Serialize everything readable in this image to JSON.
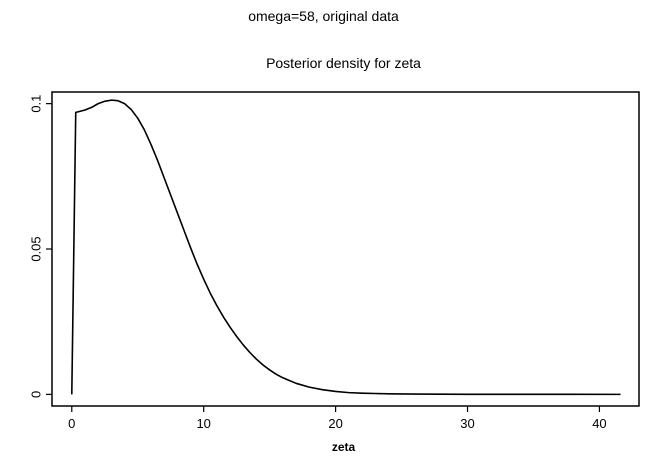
{
  "figure": {
    "suptitle": "omega=58, original data"
  },
  "chart_data": {
    "type": "line",
    "title": "Posterior density for zeta",
    "xlabel": "zeta",
    "ylabel": "",
    "xlim": [
      -1.5,
      43
    ],
    "ylim": [
      -0.004,
      0.104
    ],
    "x_ticks": [
      0,
      10,
      20,
      30,
      40
    ],
    "x_tick_labels": [
      "0",
      "10",
      "20",
      "30",
      "40"
    ],
    "y_ticks": [
      0,
      0.05,
      0.1
    ],
    "y_tick_labels": [
      "0",
      "0.05",
      "0.1"
    ],
    "grid": false,
    "legend": "none",
    "series": [
      {
        "x": [
          0,
          0.3,
          0.5,
          1.0,
          1.5,
          2.0,
          2.5,
          3.0,
          3.5,
          4.0,
          4.5,
          5.0,
          5.5,
          6.0,
          6.5,
          7.0,
          7.5,
          8.0,
          8.5,
          9.0,
          9.5,
          10.0,
          10.5,
          11.0,
          11.5,
          12.0,
          12.5,
          13.0,
          13.5,
          14.0,
          14.5,
          15.0,
          15.5,
          16.0,
          17.0,
          18.0,
          19.0,
          20.0,
          21.0,
          22.0,
          23.0,
          24.0,
          25.0,
          26.0,
          28.0,
          30.0,
          32.0,
          35.0,
          38.0,
          41.6
        ],
        "y": [
          0.0,
          0.097,
          0.0972,
          0.0978,
          0.0987,
          0.1,
          0.1008,
          0.1012,
          0.101,
          0.1,
          0.098,
          0.095,
          0.091,
          0.086,
          0.0805,
          0.0745,
          0.0685,
          0.0625,
          0.0565,
          0.0505,
          0.0448,
          0.0396,
          0.0348,
          0.0305,
          0.0266,
          0.0231,
          0.0199,
          0.017,
          0.0144,
          0.0121,
          0.0101,
          0.0084,
          0.0069,
          0.0057,
          0.0038,
          0.0025,
          0.0016,
          0.001,
          0.0006,
          0.0004,
          0.0003,
          0.0002,
          0.00015,
          0.0001,
          5e-05,
          3e-05,
          2e-05,
          1e-05,
          1e-05,
          0.0
        ]
      }
    ]
  }
}
